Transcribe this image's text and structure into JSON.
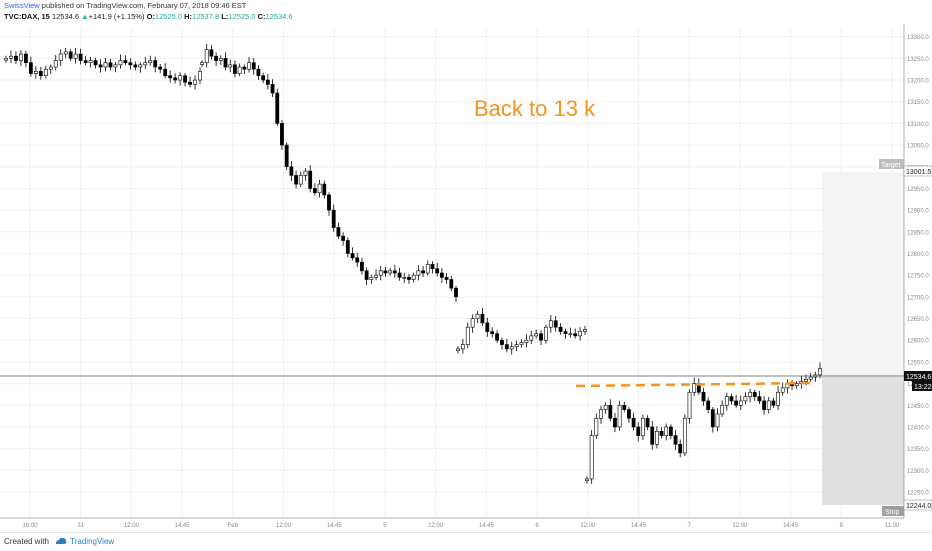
{
  "header": {
    "author": "SwissView",
    "published_text": " published on TradingView.com, February 07, 2018 09:46 EST",
    "symbol": "TVC:DAX, 15",
    "last": "12534.6",
    "change": "+141.9 (+1.15%)",
    "o_label": "O:",
    "o_value": "12525.0",
    "h_label": "H:",
    "h_value": "12537.8",
    "l_label": "L:",
    "l_value": "12525.0",
    "c_label": "C:",
    "c_value": "12534.6"
  },
  "annotation": {
    "text": "Back to 13 k",
    "color": "#f7931e"
  },
  "price_tags": {
    "target_label": "Target",
    "target_price": "13001.5",
    "current_price": "12534.6",
    "countdown": "13:22",
    "stop_price": "12244.0",
    "stop_label": "Stop"
  },
  "footer": {
    "created_with": "Created with",
    "brand": "TradingView"
  },
  "colors": {
    "candle": "#000000",
    "grid": "#f0f0f0",
    "resistance": "#f7931e",
    "zone": "#e0e0e0"
  },
  "chart_data": {
    "type": "candlestick",
    "title": "TVC:DAX, 15",
    "ylim": [
      12220,
      13320
    ],
    "x_ticks": [
      "16:00",
      "31",
      "12:00",
      "14:45",
      "Feb",
      "12:00",
      "14:45",
      "5",
      "12:00",
      "14:45",
      "6",
      "12:00",
      "14:45",
      "7",
      "12:00",
      "14:45",
      "8",
      "11:00"
    ],
    "y_ticks": [
      "13300.0",
      "13250.0",
      "13200.0",
      "13150.0",
      "13100.0",
      "13050.0",
      "13000.0",
      "12950.0",
      "12900.0",
      "12850.0",
      "12800.0",
      "12750.0",
      "12700.0",
      "12650.0",
      "12600.0",
      "12550.0",
      "12500.0",
      "12450.0",
      "12400.0",
      "12350.0",
      "12300.0",
      "12250.0"
    ],
    "current_price": 12534.6,
    "target": 13001.5,
    "stop": 12244.0,
    "resistance_level": 12515,
    "annotations": [
      "Back to 13 k"
    ],
    "segments": [
      {
        "x_start": 6,
        "x_end": 200,
        "closes": [
          13250,
          13255,
          13245,
          13260,
          13240,
          13215,
          13220,
          13210,
          13225,
          13230,
          13245,
          13260,
          13265,
          13250,
          13260,
          13245,
          13240,
          13245,
          13235,
          13230,
          13240,
          13230,
          13235,
          13245,
          13240,
          13235,
          13230,
          13235,
          13240,
          13245,
          13230,
          13225,
          13210,
          13205,
          13200,
          13210,
          13195,
          13190,
          13200,
          13220
        ]
      },
      {
        "x_start": 202,
        "x_end": 456,
        "closes": [
          13240,
          13270,
          13255,
          13245,
          13250,
          13230,
          13235,
          13215,
          13230,
          13225,
          13240,
          13225,
          13210,
          13200,
          13190,
          13170,
          13100,
          13050,
          13000,
          12980,
          12960,
          12980,
          12990,
          12950,
          12940,
          12960,
          12935,
          12900,
          12860,
          12840,
          12830,
          12800,
          12790,
          12780,
          12760,
          12740,
          12745,
          12750,
          12760,
          12755,
          12760,
          12755,
          12745,
          12745,
          12740,
          12750,
          12760,
          12755,
          12775,
          12765,
          12755,
          12745,
          12740,
          12720,
          12700
        ]
      },
      {
        "x_start": 458,
        "x_end": 585,
        "closes": [
          12580,
          12590,
          12630,
          12650,
          12660,
          12640,
          12620,
          12615,
          12600,
          12590,
          12580,
          12585,
          12590,
          12595,
          12600,
          12610,
          12615,
          12600,
          12630,
          12645,
          12630,
          12620,
          12615,
          12615,
          12610,
          12620,
          12625
        ]
      },
      {
        "x_start": 587,
        "x_end": 820,
        "closes": [
          12280,
          12380,
          12420,
          12440,
          12450,
          12420,
          12400,
          12450,
          12440,
          12420,
          12400,
          12380,
          12420,
          12400,
          12360,
          12390,
          12380,
          12400,
          12380,
          12360,
          12340,
          12420,
          12480,
          12500,
          12480,
          12460,
          12440,
          12400,
          12430,
          12450,
          12470,
          12460,
          12450,
          12460,
          12470,
          12480,
          12470,
          12460,
          12440,
          12460,
          12450,
          12480,
          12490,
          12500,
          12495,
          12500,
          12505,
          12510,
          12515,
          12520,
          12534.6
        ]
      }
    ]
  }
}
